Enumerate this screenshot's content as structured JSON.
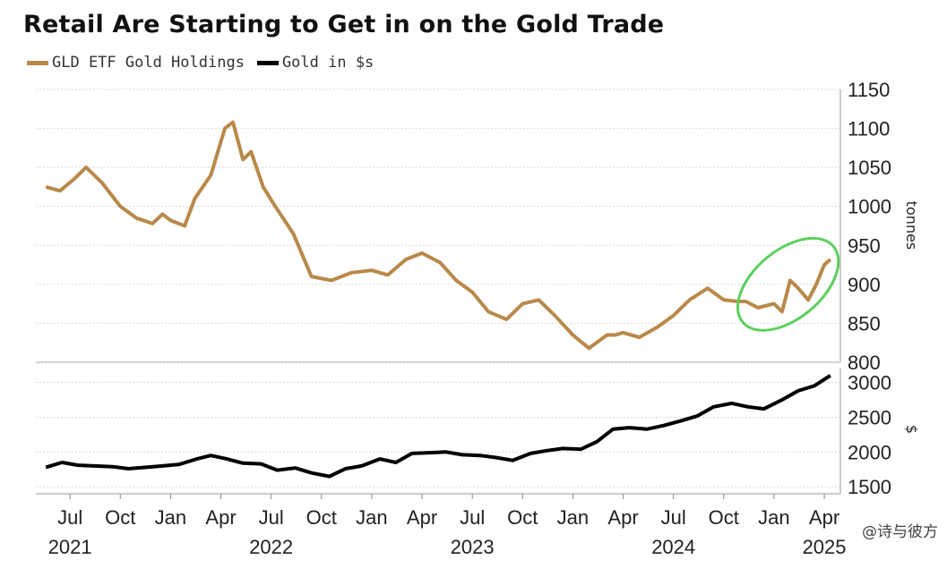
{
  "title": "Retail Are Starting to Get in on the Gold Trade",
  "legend": [
    {
      "label": "GLD ETF Gold Holdings",
      "color": "#b8894a"
    },
    {
      "label": "Gold in $s",
      "color": "#000000"
    }
  ],
  "watermark": "@诗与彼方",
  "highlight_color": "#5ccf5c",
  "chart_data": [
    {
      "type": "line",
      "panel": "top",
      "series": [
        {
          "name": "GLD ETF Gold Holdings",
          "color": "#b8894a",
          "x": [
            2021.38,
            2021.45,
            2021.52,
            2021.58,
            2021.66,
            2021.75,
            2021.83,
            2021.91,
            2021.96,
            2022.0,
            2022.07,
            2022.12,
            2022.2,
            2022.27,
            2022.31,
            2022.36,
            2022.4,
            2022.46,
            2022.52,
            2022.61,
            2022.7,
            2022.8,
            2022.9,
            2023.0,
            2023.08,
            2023.17,
            2023.25,
            2023.34,
            2023.42,
            2023.5,
            2023.58,
            2023.67,
            2023.75,
            2023.83,
            2023.91,
            2024.0,
            2024.08,
            2024.17,
            2024.21,
            2024.25,
            2024.33,
            2024.42,
            2024.5,
            2024.58,
            2024.67,
            2024.75,
            2024.82,
            2024.86,
            2024.92,
            2025.0,
            2025.04,
            2025.08,
            2025.12,
            2025.17,
            2025.21,
            2025.25,
            2025.28
          ],
          "values": [
            1025,
            1020,
            1035,
            1050,
            1030,
            1000,
            985,
            978,
            990,
            982,
            975,
            1010,
            1040,
            1100,
            1108,
            1060,
            1070,
            1025,
            1000,
            965,
            910,
            905,
            915,
            918,
            912,
            932,
            940,
            928,
            905,
            890,
            865,
            855,
            875,
            880,
            860,
            835,
            818,
            835,
            835,
            838,
            832,
            845,
            860,
            880,
            895,
            880,
            878,
            878,
            870,
            875,
            865,
            905,
            895,
            880,
            900,
            925,
            932
          ]
        }
      ],
      "ylim": [
        800,
        1150
      ],
      "yticks": [
        800,
        850,
        900,
        950,
        1000,
        1050,
        1100,
        1150
      ],
      "ylabel": "tonnes",
      "xlim": [
        2021.33,
        2025.33
      ]
    },
    {
      "type": "line",
      "panel": "bottom",
      "series": [
        {
          "name": "Gold in $s",
          "color": "#000000",
          "x": [
            2021.38,
            2021.46,
            2021.54,
            2021.62,
            2021.71,
            2021.79,
            2021.88,
            2021.96,
            2022.04,
            2022.13,
            2022.2,
            2022.28,
            2022.36,
            2022.45,
            2022.53,
            2022.62,
            2022.7,
            2022.79,
            2022.87,
            2022.95,
            2023.04,
            2023.12,
            2023.2,
            2023.29,
            2023.37,
            2023.45,
            2023.54,
            2023.62,
            2023.7,
            2023.79,
            2023.87,
            2023.95,
            2024.04,
            2024.12,
            2024.2,
            2024.28,
            2024.37,
            2024.45,
            2024.54,
            2024.62,
            2024.7,
            2024.79,
            2024.87,
            2024.95,
            2025.04,
            2025.12,
            2025.2,
            2025.28
          ],
          "values": [
            1780,
            1850,
            1810,
            1800,
            1790,
            1760,
            1780,
            1800,
            1820,
            1900,
            1950,
            1900,
            1840,
            1830,
            1740,
            1770,
            1700,
            1650,
            1760,
            1800,
            1900,
            1850,
            1980,
            1990,
            2000,
            1960,
            1950,
            1920,
            1880,
            1980,
            2020,
            2050,
            2040,
            2150,
            2330,
            2350,
            2330,
            2380,
            2450,
            2520,
            2650,
            2700,
            2650,
            2620,
            2750,
            2880,
            2950,
            3100
          ]
        }
      ],
      "ylim": [
        1400,
        3200
      ],
      "yticks": [
        1500,
        2000,
        2500,
        3000
      ],
      "ylabel": "$",
      "xlim": [
        2021.33,
        2025.33
      ]
    }
  ],
  "x_axis": {
    "months": [
      {
        "label": "Jul",
        "t": 2021.5
      },
      {
        "label": "Oct",
        "t": 2021.75
      },
      {
        "label": "Jan",
        "t": 2022.0
      },
      {
        "label": "Apr",
        "t": 2022.25
      },
      {
        "label": "Jul",
        "t": 2022.5
      },
      {
        "label": "Oct",
        "t": 2022.75
      },
      {
        "label": "Jan",
        "t": 2023.0
      },
      {
        "label": "Apr",
        "t": 2023.25
      },
      {
        "label": "Jul",
        "t": 2023.5
      },
      {
        "label": "Oct",
        "t": 2023.75
      },
      {
        "label": "Jan",
        "t": 2024.0
      },
      {
        "label": "Apr",
        "t": 2024.25
      },
      {
        "label": "Jul",
        "t": 2024.5
      },
      {
        "label": "Oct",
        "t": 2024.75
      },
      {
        "label": "Jan",
        "t": 2025.0
      },
      {
        "label": "Apr",
        "t": 2025.25
      }
    ],
    "years": [
      {
        "label": "2021",
        "t": 2021.5
      },
      {
        "label": "2022",
        "t": 2022.5
      },
      {
        "label": "2023",
        "t": 2023.5
      },
      {
        "label": "2024",
        "t": 2024.5
      },
      {
        "label": "2025",
        "t": 2025.25
      }
    ]
  }
}
